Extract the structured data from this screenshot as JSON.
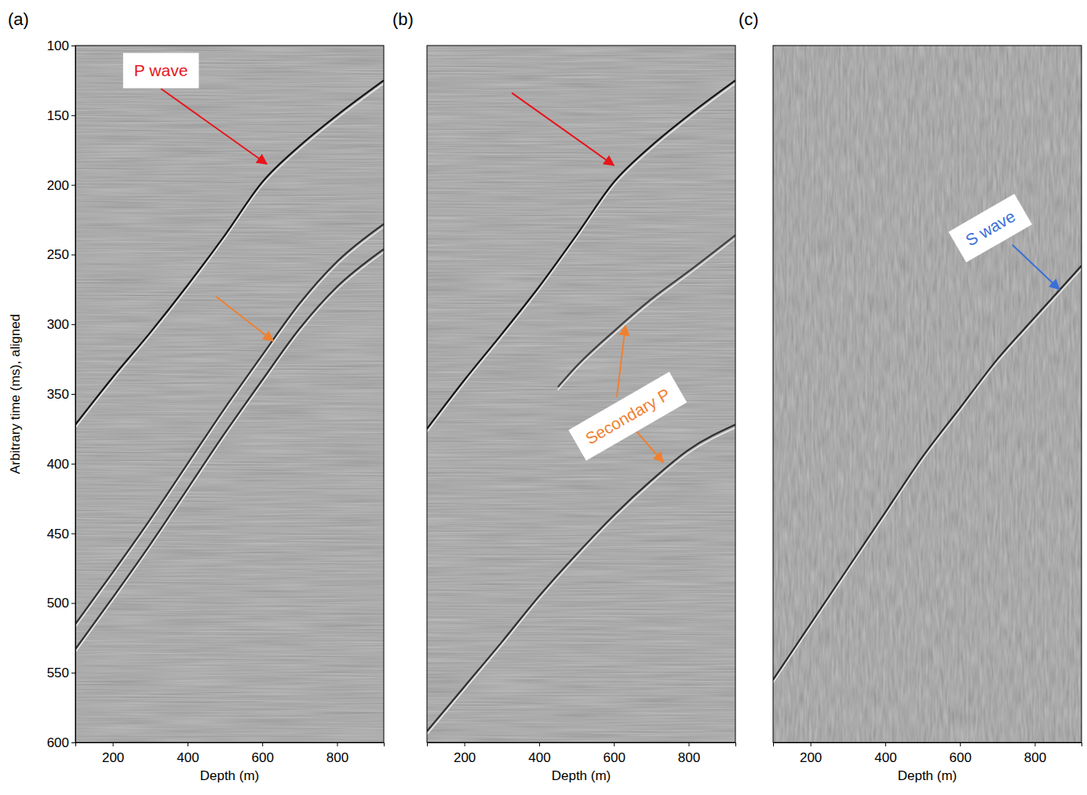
{
  "chart_data": [
    {
      "type": "line",
      "title": "(a)",
      "xlabel": "Depth (m)",
      "ylabel": "Arbitrary time (ms), aligned",
      "xlim": [
        100,
        925
      ],
      "ylim": [
        600,
        100
      ],
      "xticks": [
        200,
        400,
        600,
        800
      ],
      "yticks": [
        100,
        150,
        200,
        250,
        300,
        350,
        400,
        450,
        500,
        550,
        600
      ],
      "series": [
        {
          "color": "#151515",
          "x": [
            100,
            200,
            300,
            400,
            500,
            600,
            700,
            800,
            925
          ],
          "values": [
            372,
            338,
            306,
            272,
            236,
            198,
            172,
            150,
            125
          ]
        },
        {
          "color": "#303030",
          "x": [
            100,
            200,
            300,
            400,
            500,
            600,
            700,
            800,
            925
          ],
          "values": [
            515,
            478,
            440,
            400,
            360,
            322,
            285,
            255,
            228
          ]
        },
        {
          "color": "#303030",
          "x": [
            100,
            200,
            300,
            400,
            500,
            600,
            700,
            800,
            925
          ],
          "values": [
            533,
            496,
            458,
            418,
            378,
            340,
            303,
            273,
            246
          ]
        }
      ],
      "annotations": [
        {
          "text": "P wave",
          "color": "#e8141b",
          "at": [
            329,
            118
          ],
          "arrows": [
            [
              [
                329,
                131
              ],
              [
                612,
                185
              ]
            ]
          ]
        },
        {
          "color": "#f08030",
          "arrows": [
            [
              [
                476,
                280
              ],
              [
                629,
                312
              ]
            ]
          ]
        }
      ]
    },
    {
      "type": "line",
      "title": "(b)",
      "xlabel": "Depth (m)",
      "xlim": [
        100,
        925
      ],
      "ylim": [
        600,
        100
      ],
      "tick_labels": "x",
      "xticks": [
        200,
        400,
        600,
        800
      ],
      "series": [
        {
          "color": "#151515",
          "x": [
            100,
            200,
            300,
            400,
            500,
            600,
            700,
            800,
            925
          ],
          "values": [
            375,
            340,
            307,
            273,
            236,
            198,
            172,
            150,
            125
          ]
        },
        {
          "color": "#404040",
          "x": [
            450,
            500,
            600,
            700,
            800,
            925
          ],
          "values": [
            345,
            330,
            305,
            282,
            262,
            236
          ]
        },
        {
          "color": "#303030",
          "x": [
            100,
            200,
            300,
            400,
            500,
            600,
            700,
            800,
            925
          ],
          "values": [
            592,
            560,
            528,
            495,
            465,
            437,
            412,
            390,
            372
          ]
        }
      ],
      "annotations": [
        {
          "color": "#e8141b",
          "arrows": [
            [
              [
                327,
                134
              ],
              [
                600,
                186
              ]
            ]
          ]
        },
        {
          "text": "Secondary P",
          "color": "#f08030",
          "at": [
            637,
            366
          ],
          "arrows": [
            [
              [
                608,
                352
              ],
              [
                631,
                301
              ]
            ],
            [
              [
                661,
                377
              ],
              [
                732,
                399
              ]
            ]
          ]
        }
      ]
    },
    {
      "type": "line",
      "title": "(c)",
      "xlabel": "Depth (m)",
      "xlim": [
        100,
        925
      ],
      "ylim": [
        600,
        100
      ],
      "tick_labels": "x",
      "xticks": [
        200,
        400,
        600,
        800
      ],
      "series": [
        {
          "color": "#2a2a2a",
          "x": [
            100,
            200,
            300,
            400,
            500,
            600,
            700,
            800,
            925
          ],
          "values": [
            555,
            515,
            475,
            435,
            395,
            360,
            325,
            295,
            258
          ]
        }
      ],
      "annotations": [
        {
          "text": "S wave",
          "color": "#3a6fd8",
          "at": [
            681,
            231
          ],
          "arrows": [
            [
              [
                740,
                243
              ],
              [
                866,
                275
              ]
            ]
          ]
        }
      ]
    }
  ]
}
